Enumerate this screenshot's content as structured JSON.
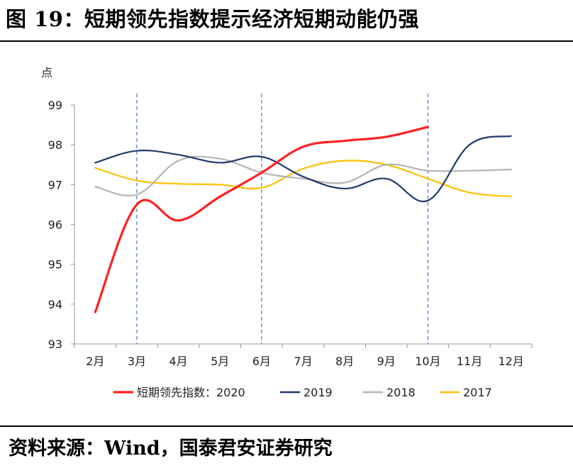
{
  "header": {
    "title": "图 19：短期领先指数提示经济短期动能仍强"
  },
  "footer": {
    "source": "资料来源：Wind，国泰君安证券研究"
  },
  "colors": {
    "s2020": "#ff2020",
    "s2019": "#1f3a6e",
    "s2018": "#b4b4b4",
    "s2017": "#ffc000",
    "axis": "#9a9a9a",
    "vline": "#4a78c2"
  },
  "chart_data": {
    "type": "line",
    "ylabel": "点",
    "ylim": [
      93,
      99
    ],
    "yticks": [
      "93",
      "94",
      "95",
      "96",
      "97",
      "98",
      "99"
    ],
    "categories": [
      "2月",
      "3月",
      "4月",
      "5月",
      "6月",
      "7月",
      "8月",
      "9月",
      "10月",
      "11月",
      "12月"
    ],
    "vertical_dashed_markers": [
      "3月",
      "6月",
      "10月"
    ],
    "legend_position": "bottom",
    "series": [
      {
        "name": "短期领先指数：2020",
        "color": "#ff2020",
        "values": [
          93.8,
          96.5,
          96.1,
          96.7,
          97.3,
          97.95,
          98.1,
          98.2,
          98.45,
          null,
          null
        ]
      },
      {
        "name": "2019",
        "color": "#1f3a6e",
        "values": [
          97.55,
          97.85,
          97.75,
          97.55,
          97.7,
          97.2,
          96.9,
          97.15,
          96.6,
          98.0,
          98.22
        ]
      },
      {
        "name": "2018",
        "color": "#b4b4b4",
        "values": [
          96.95,
          96.75,
          97.6,
          97.65,
          97.3,
          97.15,
          97.05,
          97.5,
          97.35,
          97.35,
          97.38
        ]
      },
      {
        "name": "2017",
        "color": "#ffc000",
        "values": [
          97.42,
          97.1,
          97.02,
          97.0,
          96.92,
          97.4,
          97.6,
          97.5,
          97.15,
          96.8,
          96.7
        ]
      }
    ]
  }
}
